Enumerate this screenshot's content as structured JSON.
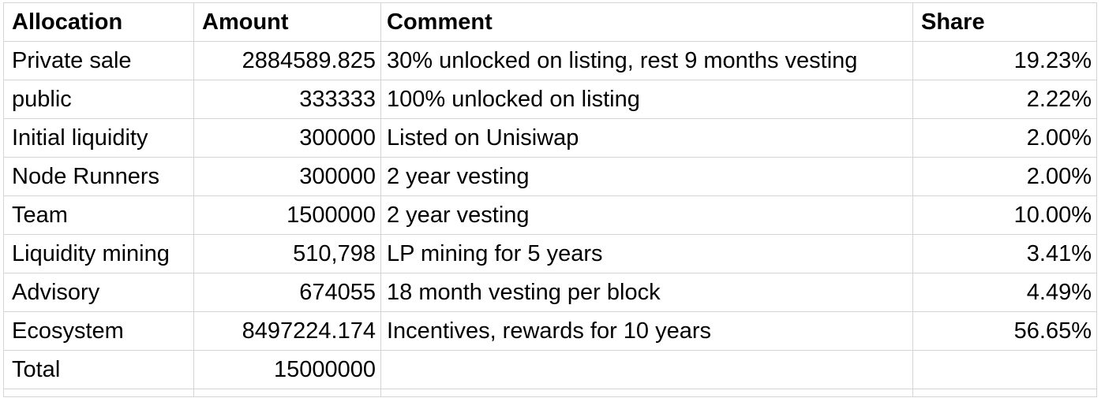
{
  "headers": {
    "allocation": "Allocation",
    "amount": "Amount",
    "comment": "Comment",
    "share": "Share"
  },
  "rows": [
    {
      "allocation": "Private sale",
      "amount": "2884589.825",
      "comment": "30% unlocked on listing, rest 9 months vesting",
      "share": "19.23%"
    },
    {
      "allocation": "public",
      "amount": "333333",
      "comment": "100% unlocked on listing",
      "share": "2.22%"
    },
    {
      "allocation": "Initial liquidity",
      "amount": "300000",
      "comment": "Listed on Unisiwap",
      "share": "2.00%"
    },
    {
      "allocation": "Node Runners",
      "amount": "300000",
      "comment": "2 year vesting",
      "share": "2.00%"
    },
    {
      "allocation": "Team",
      "amount": "1500000",
      "comment": "2 year vesting",
      "share": "10.00%"
    },
    {
      "allocation": "Liquidity mining",
      "amount": "510,798",
      "comment": "LP mining for 5 years",
      "share": "3.41%"
    },
    {
      "allocation": "Advisory",
      "amount": "674055",
      "comment": "18 month vesting per block",
      "share": "4.49%"
    },
    {
      "allocation": "Ecosystem",
      "amount": "8497224.174",
      "comment": "Incentives, rewards for 10 years",
      "share": "56.65%"
    }
  ],
  "total": {
    "label": "Total",
    "amount": "15000000",
    "comment": "",
    "share": ""
  },
  "colors": {
    "grid_line": "#d4d4d4",
    "background": "#ffffff",
    "text": "#000000"
  }
}
